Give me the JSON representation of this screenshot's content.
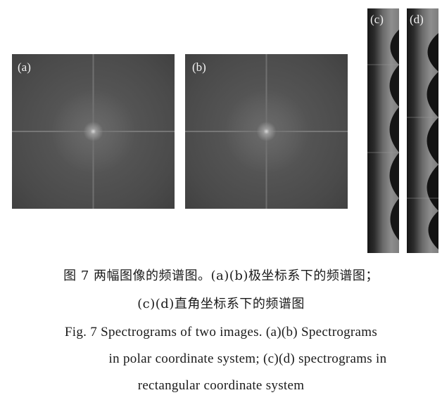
{
  "figure": {
    "panels": [
      {
        "id": "a",
        "label": "(a)"
      },
      {
        "id": "b",
        "label": "(b)"
      },
      {
        "id": "c",
        "label": "(c)"
      },
      {
        "id": "d",
        "label": "(d)"
      }
    ],
    "caption_cn": {
      "line1": "图 7   两幅图像的频谱图。(a)(b)极坐标系下的频谱图；",
      "line2": "(c)(d)直角坐标系下的频谱图"
    },
    "caption_en": {
      "line1": "Fig. 7  Spectrograms of two images. (a)(b) Spectrograms",
      "line2": "in polar coordinate system; (c)(d) spectrograms in",
      "line3": "rectangular coordinate system"
    }
  }
}
